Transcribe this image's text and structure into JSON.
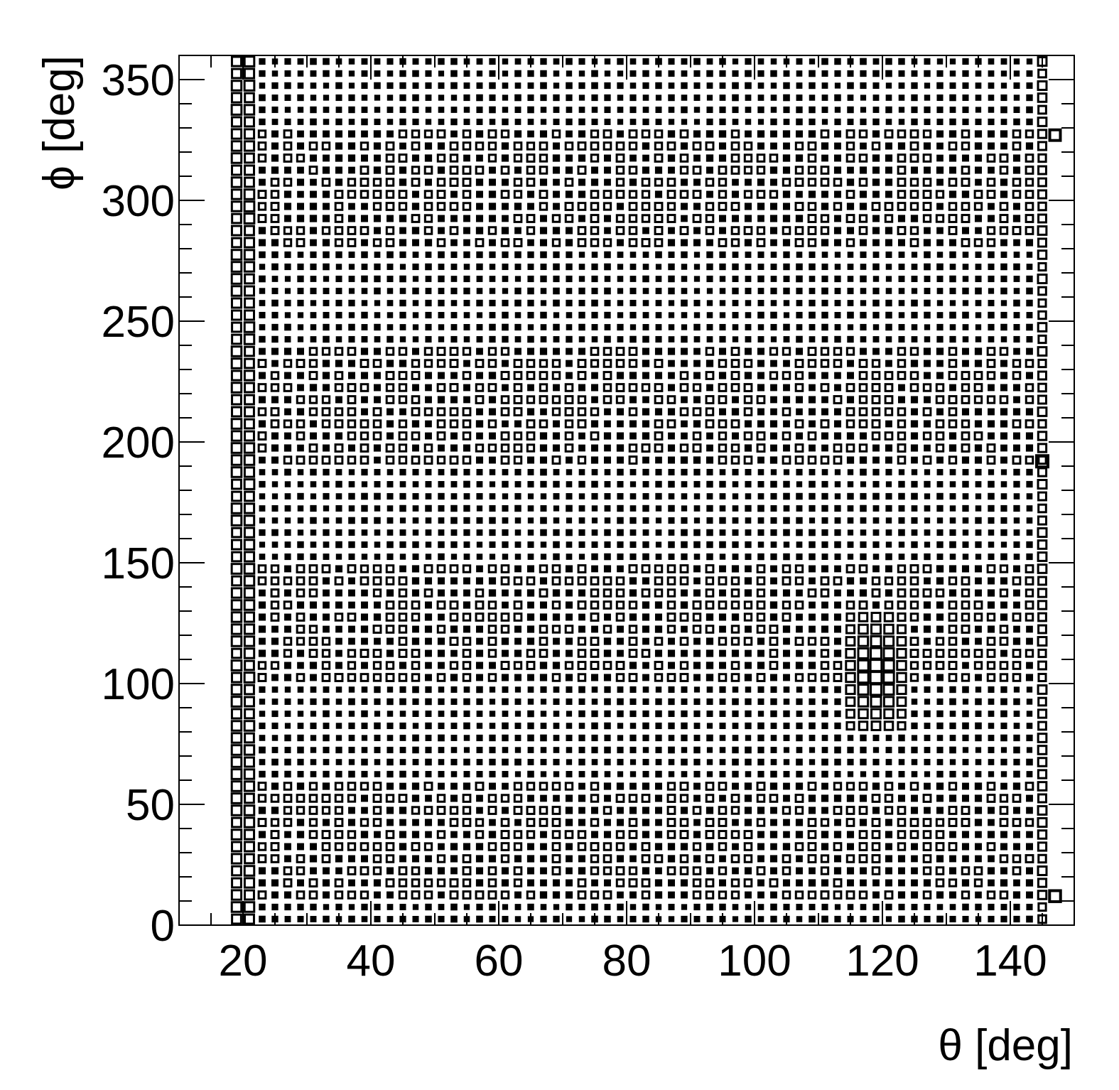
{
  "chart_data": {
    "type": "box2d",
    "xlabel": "θ [deg]",
    "ylabel": "ϕ [deg]",
    "xlim": [
      10,
      150
    ],
    "ylim": [
      0,
      360
    ],
    "x_ticks": [
      20,
      40,
      60,
      80,
      100,
      120,
      140
    ],
    "y_ticks": [
      0,
      50,
      100,
      150,
      200,
      250,
      300,
      350
    ],
    "x_minor_step": 5,
    "y_minor_step": 10,
    "grid": false,
    "legend": "none",
    "bin_width_x_deg": 2,
    "bin_width_y_deg": 5,
    "x_range_filled": [
      18,
      146
    ],
    "y_range_filled": [
      0,
      360
    ],
    "box_scale": "relative counts (0-1); larger box = more entries",
    "features": {
      "forward_edge_column_x": [
        19,
        21
      ],
      "backward_edge_column_x": 145,
      "high_density_ring_rows_phi": [
        12,
        22,
        107,
        117,
        192,
        202,
        282,
        292
      ],
      "dense_cluster": {
        "theta": [
          114,
          124
        ],
        "phi": [
          80,
          130
        ],
        "peak_relative": 0.9
      },
      "isolated_large_boxes": [
        {
          "theta": 147,
          "phi": 327,
          "relative": 0.7
        },
        {
          "theta": 145,
          "phi": 192,
          "relative": 0.8
        },
        {
          "theta": 147,
          "phi": 12,
          "relative": 0.75
        }
      ]
    },
    "typical_relative": 0.3
  }
}
